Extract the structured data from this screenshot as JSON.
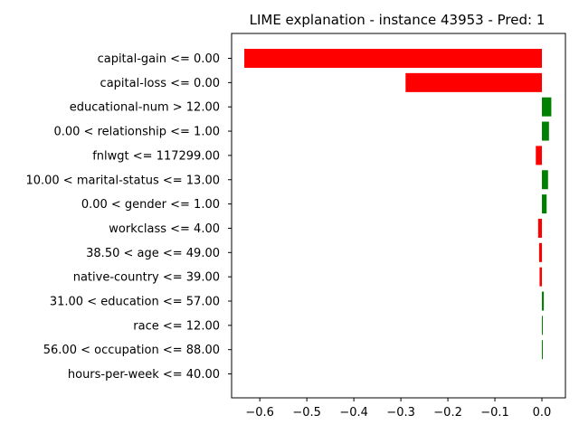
{
  "chart_data": {
    "type": "bar",
    "orientation": "horizontal",
    "title": "LIME explanation - instance 43953 - Pred: 1",
    "xlabel": "",
    "ylabel": "",
    "xlim": [
      -0.66,
      0.05
    ],
    "xticks": [
      -0.6,
      -0.5,
      -0.4,
      -0.3,
      -0.2,
      -0.1,
      0.0
    ],
    "xtick_labels": [
      "−0.6",
      "−0.5",
      "−0.4",
      "−0.3",
      "−0.2",
      "−0.1",
      "0.0"
    ],
    "grid": false,
    "positive_color": "#008000",
    "negative_color": "#ff0000",
    "categories": [
      "capital-gain <= 0.00",
      "capital-loss <= 0.00",
      "educational-num > 12.00",
      "0.00 < relationship <= 1.00",
      "fnlwgt <= 117299.00",
      "10.00 < marital-status <= 13.00",
      "0.00 < gender <= 1.00",
      "workclass <= 4.00",
      "38.50 < age <= 49.00",
      "native-country <= 39.00",
      "31.00 < education <= 57.00",
      "race <= 12.00",
      "56.00 < occupation <= 88.00",
      "hours-per-week <= 40.00"
    ],
    "values": [
      -0.633,
      -0.29,
      0.02,
      0.015,
      -0.013,
      0.013,
      0.01,
      -0.008,
      -0.006,
      -0.005,
      0.004,
      0.002,
      0.002,
      0.0
    ]
  }
}
